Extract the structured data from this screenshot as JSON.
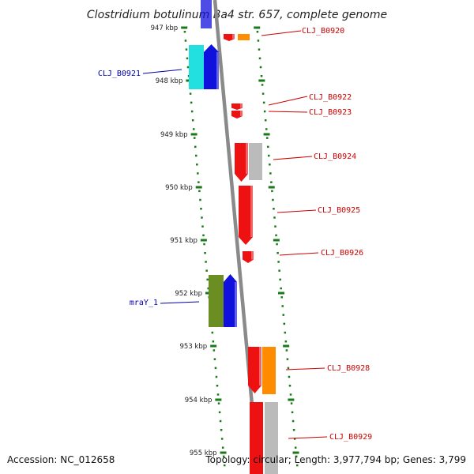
{
  "title": "Clostridium botulinum Ba4 str. 657, complete genome",
  "footer": {
    "accession": "Accession: NC_012658",
    "topology": "Topology: circular; Length: 3,977,794 bp; Genes: 3,799"
  },
  "colors": {
    "background": "#ffffff",
    "backbone": "#8a8a8a",
    "tick": "#1a7a1a",
    "forward_label": "#0000aa",
    "reverse_label": "#cc0000",
    "red": "#ee1111",
    "blue": "#1111dd",
    "cyan": "#22e0e0",
    "olive": "#6b8e23",
    "orange": "#ff8c00",
    "gray": "#bbbbbb"
  },
  "ticks": [
    {
      "label": "947 kbp"
    },
    {
      "label": "948 kbp"
    },
    {
      "label": "949 kbp"
    },
    {
      "label": "950 kbp"
    },
    {
      "label": "951 kbp"
    },
    {
      "label": "952 kbp"
    },
    {
      "label": "953 kbp"
    },
    {
      "label": "954 kbp"
    },
    {
      "label": "955 kbp"
    }
  ],
  "gene_labels": [
    {
      "label": "CLJ_B0920",
      "strand": "reverse"
    },
    {
      "label": "CLJ_B0921",
      "strand": "forward"
    },
    {
      "label": "CLJ_B0922",
      "strand": "reverse"
    },
    {
      "label": "CLJ_B0923",
      "strand": "reverse"
    },
    {
      "label": "CLJ_B0924",
      "strand": "reverse"
    },
    {
      "label": "CLJ_B0925",
      "strand": "reverse"
    },
    {
      "label": "CLJ_B0926",
      "strand": "reverse"
    },
    {
      "label": "mraY_1",
      "strand": "forward"
    },
    {
      "label": "CLJ_B0928",
      "strand": "reverse"
    },
    {
      "label": "CLJ_B0929",
      "strand": "reverse"
    }
  ]
}
